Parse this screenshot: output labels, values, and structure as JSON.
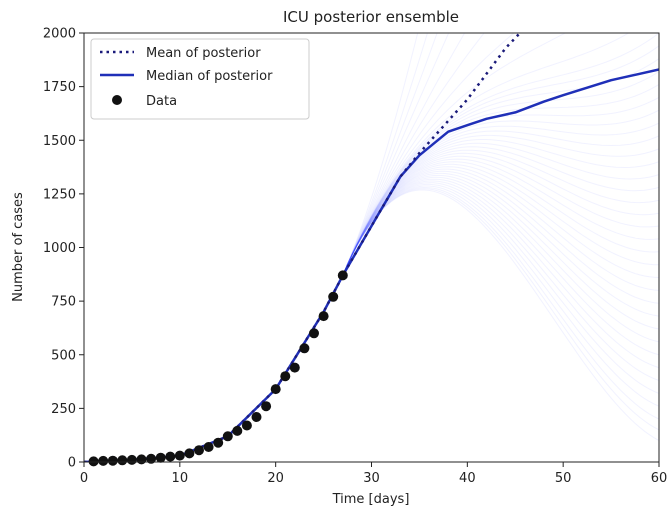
{
  "chart_data": {
    "type": "line",
    "title": "ICU posterior ensemble",
    "xlabel": "Time [days]",
    "ylabel": "Number of cases",
    "xlim": [
      0,
      60
    ],
    "ylim": [
      0,
      2000
    ],
    "xticks": [
      0,
      10,
      20,
      30,
      40,
      50,
      60
    ],
    "yticks": [
      0,
      250,
      500,
      750,
      1000,
      1250,
      1500,
      1750,
      2000
    ],
    "legend_position": "top-left",
    "colors": {
      "mean": "#1a1a7a",
      "median": "#1f2fb8",
      "data": "#111111",
      "ensemble": "#3a4dff"
    },
    "series": [
      {
        "name": "Mean of posterior",
        "style": "dotted",
        "x": [
          0,
          5,
          10,
          15,
          20,
          25,
          27,
          30,
          33,
          35,
          38,
          40,
          42,
          44,
          45.5
        ],
        "y": [
          0,
          10,
          30,
          120,
          340,
          700,
          870,
          1100,
          1330,
          1440,
          1590,
          1690,
          1810,
          1930,
          2000
        ]
      },
      {
        "name": "Median of posterior",
        "style": "solid",
        "x": [
          0,
          5,
          10,
          15,
          20,
          25,
          27,
          30,
          33,
          35,
          38,
          40,
          42,
          45,
          48,
          50,
          55,
          60
        ],
        "y": [
          0,
          10,
          30,
          120,
          340,
          700,
          870,
          1100,
          1330,
          1430,
          1540,
          1570,
          1600,
          1630,
          1680,
          1710,
          1780,
          1830
        ]
      },
      {
        "name": "Data",
        "style": "markers",
        "x": [
          1,
          2,
          3,
          4,
          5,
          6,
          7,
          8,
          9,
          10,
          11,
          12,
          13,
          14,
          15,
          16,
          17,
          18,
          19,
          20,
          21,
          22,
          23,
          24,
          25,
          26,
          27
        ],
        "y": [
          3,
          5,
          6,
          8,
          10,
          12,
          15,
          20,
          25,
          30,
          40,
          55,
          70,
          90,
          120,
          145,
          170,
          210,
          260,
          340,
          400,
          440,
          530,
          600,
          680,
          770,
          870
        ]
      }
    ],
    "ensemble": {
      "name": "",
      "x_start": 27,
      "y_start": 870,
      "final_values": [
        100,
        150,
        200,
        260,
        320,
        380,
        440,
        500,
        560,
        620,
        680,
        740,
        800,
        860,
        920,
        980,
        1040,
        1100,
        1160,
        1220,
        1280,
        1340,
        1400,
        1460,
        1520,
        1580,
        1640,
        1700,
        1760,
        1820,
        1880,
        1940,
        2000,
        2100,
        2300,
        2600,
        3000,
        3500,
        4200,
        5000,
        6000,
        7500
      ]
    }
  }
}
